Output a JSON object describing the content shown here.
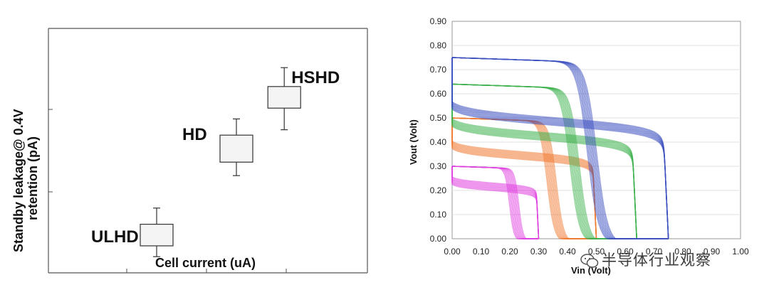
{
  "chart_data": [
    {
      "type": "box",
      "categories": [
        "ULHD",
        "HD",
        "HSHD"
      ],
      "ylabel_line1": "Standby leakage@ 0.4V",
      "ylabel_line2": "retention (pA)",
      "xlabel": "Cell current (uA)",
      "boxes": [
        {
          "name": "ULHD",
          "x": 1.0,
          "whisker_low": 0.6,
          "q1": 1.0,
          "q3": 1.8,
          "whisker_high": 2.4
        },
        {
          "name": "HD",
          "x": 2.0,
          "whisker_low": 3.6,
          "q1": 4.1,
          "q3": 5.1,
          "whisker_high": 5.7
        },
        {
          "name": "HSHD",
          "x": 2.6,
          "whisker_low": 5.3,
          "q1": 6.1,
          "q3": 6.9,
          "whisker_high": 7.6
        }
      ],
      "grid": false
    },
    {
      "type": "line",
      "xlabel": "Vin (Volt)",
      "ylabel": "Vout (Volt)",
      "xlim": [
        0.0,
        1.0
      ],
      "ylim": [
        0.0,
        0.9
      ],
      "xticks": [
        "0.00",
        "0.10",
        "0.20",
        "0.30",
        "0.40",
        "0.50",
        "0.60",
        "0.70",
        "0.80",
        "0.90",
        "1.00"
      ],
      "yticks": [
        "0.00",
        "0.10",
        "0.20",
        "0.30",
        "0.40",
        "0.50",
        "0.60",
        "0.70",
        "0.80",
        "0.90"
      ],
      "grid": true,
      "series": [
        {
          "color": "#e040e0",
          "vdd": 0.3,
          "ps": [
            0.2,
            0.23
          ]
        },
        {
          "color": "#f07830",
          "vdd": 0.5,
          "ps": [
            0.33,
            0.36
          ]
        },
        {
          "color": "#3cb04c",
          "vdd": 0.64,
          "ps": [
            0.4,
            0.45
          ]
        },
        {
          "color": "#3a4fc0",
          "vdd": 0.75,
          "ps": [
            0.44,
            0.53
          ]
        }
      ]
    }
  ],
  "watermark": {
    "text": "半导体行业观察"
  },
  "colors": {
    "box_fill": "#f4f4f4",
    "axis": "#555555",
    "grid": "#e0e0e0"
  }
}
